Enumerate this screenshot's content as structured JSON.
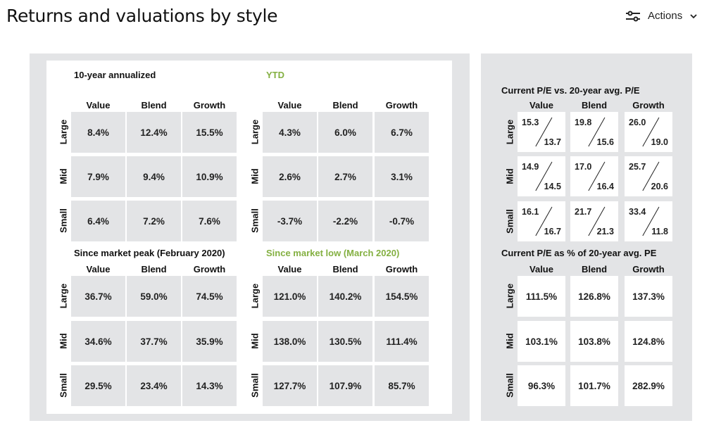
{
  "header": {
    "title": "Returns and valuations by style",
    "actions_label": "Actions",
    "actions_icon": "sliders-icon",
    "chevron_icon": "chevron-down-icon"
  },
  "columns": [
    "Value",
    "Blend",
    "Growth"
  ],
  "rows": [
    "Large",
    "Mid",
    "Small"
  ],
  "returns": [
    {
      "title": "10-year annualized",
      "green": false,
      "values": [
        [
          "8.4%",
          "12.4%",
          "15.5%"
        ],
        [
          "7.9%",
          "9.4%",
          "10.9%"
        ],
        [
          "6.4%",
          "7.2%",
          "7.6%"
        ]
      ]
    },
    {
      "title": "YTD",
      "green": true,
      "values": [
        [
          "4.3%",
          "6.0%",
          "6.7%"
        ],
        [
          "2.6%",
          "2.7%",
          "3.1%"
        ],
        [
          "-3.7%",
          "-2.2%",
          "-0.7%"
        ]
      ]
    },
    {
      "title": "Since market peak (February 2020)",
      "green": false,
      "values": [
        [
          "36.7%",
          "59.0%",
          "74.5%"
        ],
        [
          "34.6%",
          "37.7%",
          "35.9%"
        ],
        [
          "29.5%",
          "23.4%",
          "14.3%"
        ]
      ]
    },
    {
      "title": "Since market low (March 2020)",
      "green": true,
      "values": [
        [
          "121.0%",
          "140.2%",
          "154.5%"
        ],
        [
          "138.0%",
          "130.5%",
          "111.4%"
        ],
        [
          "127.7%",
          "107.9%",
          "85.7%"
        ]
      ]
    }
  ],
  "pe_vs_avg": {
    "title": "Current P/E vs. 20-year avg. P/E",
    "values": [
      [
        {
          "current": "15.3",
          "avg": "13.7"
        },
        {
          "current": "19.8",
          "avg": "15.6"
        },
        {
          "current": "26.0",
          "avg": "19.0"
        }
      ],
      [
        {
          "current": "14.9",
          "avg": "14.5"
        },
        {
          "current": "17.0",
          "avg": "16.4"
        },
        {
          "current": "25.7",
          "avg": "20.6"
        }
      ],
      [
        {
          "current": "16.1",
          "avg": "16.7"
        },
        {
          "current": "21.7",
          "avg": "21.3"
        },
        {
          "current": "33.4",
          "avg": "11.8"
        }
      ]
    ]
  },
  "pe_pct": {
    "title": "Current P/E as % of 20-year avg. PE",
    "values": [
      [
        "111.5%",
        "126.8%",
        "137.3%"
      ],
      [
        "103.1%",
        "103.8%",
        "124.8%"
      ],
      [
        "96.3%",
        "101.7%",
        "282.9%"
      ]
    ]
  }
}
